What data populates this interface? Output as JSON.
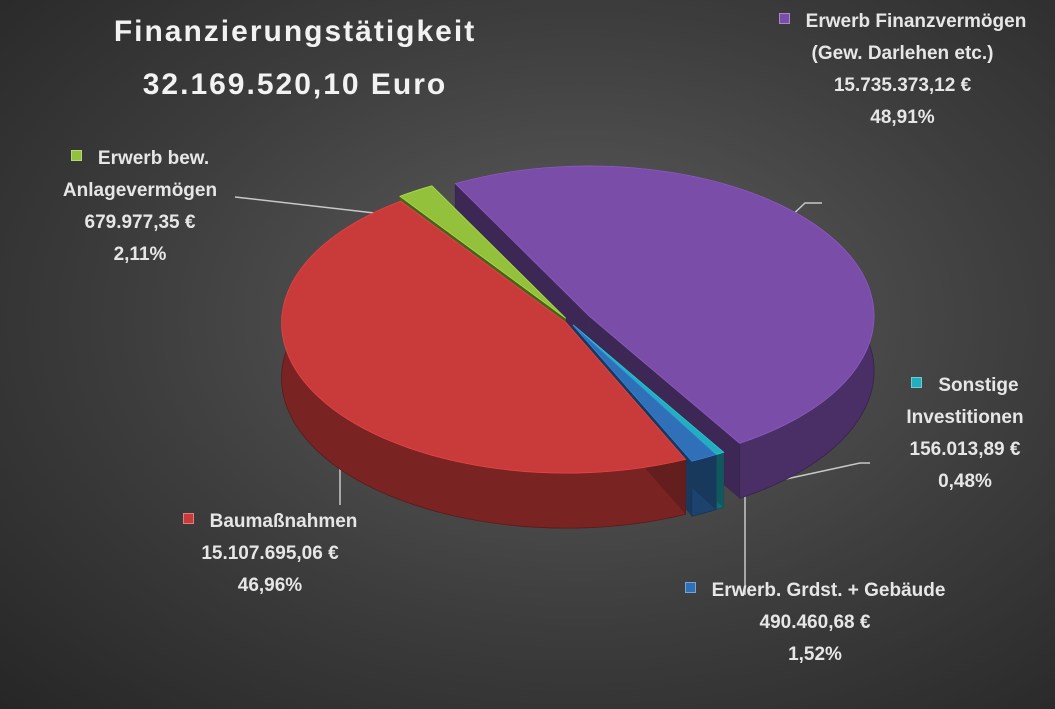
{
  "chart_data": {
    "type": "pie3d",
    "title": "Finanzierungstätigkeit",
    "subtitle": "32.169.520,10 Euro",
    "categories": [
      "Erwerb Finanzvermögen (Gew. Darlehen etc.)",
      "Sonstige Investitionen",
      "Erwerb. Grdst. + Gebäude",
      "Baumaßnahmen",
      "Erwerb bew. Anlagevermögen"
    ],
    "values": [
      48.91,
      0.48,
      1.52,
      46.96,
      2.11
    ],
    "value_labels": [
      "48,91%",
      "0,48%",
      "1,52%",
      "46,96%",
      "2,11%"
    ],
    "amounts": [
      15735373.12,
      156013.89,
      490460.68,
      15107695.06,
      679977.35
    ],
    "amount_labels": [
      "15.735.373,12 €",
      "156.013,89 €",
      "490.460,68 €",
      "15.107.695,06 €",
      "679.977,35 €"
    ],
    "colors": [
      "#7a4ea8",
      "#22aebd",
      "#2f70b8",
      "#c93b3b",
      "#93c13c"
    ]
  }
}
